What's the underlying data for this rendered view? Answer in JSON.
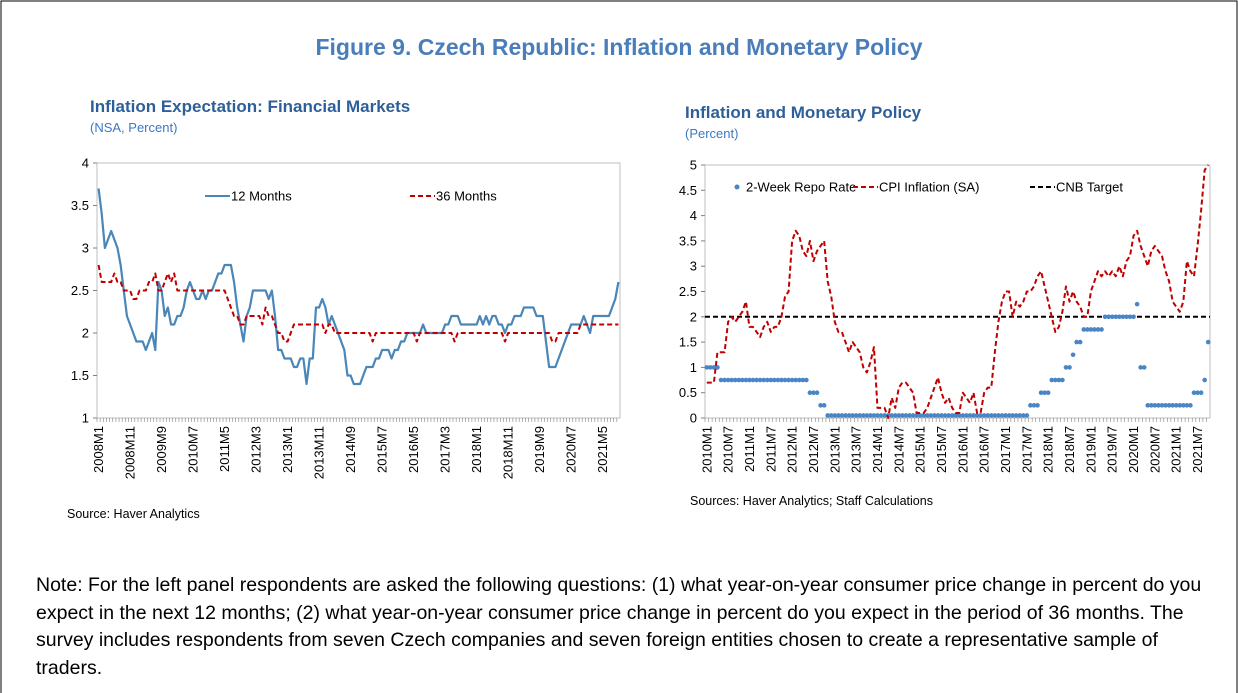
{
  "title": "Figure 9. Czech Republic: Inflation and Monetary Policy",
  "note": "Note: For the left panel respondents are asked the following questions: (1) what year-on-year consumer price change in percent do you expect in the next 12 months; (2) what year-on-year consumer price change in percent do you expect in the period of 36 months. The survey includes respondents from seven Czech companies and seven foreign entities chosen to create a representative sample of traders.",
  "chart_data": [
    {
      "type": "line",
      "title": "Inflation Expectation: Financial Markets",
      "subtitle": "(NSA, Percent)",
      "source": "Source: Haver Analytics",
      "categories": [
        "2008M1",
        null,
        null,
        null,
        null,
        null,
        null,
        null,
        null,
        null,
        "2008M11",
        null,
        null,
        null,
        null,
        null,
        null,
        null,
        null,
        null,
        "2009M9",
        null,
        null,
        null,
        null,
        null,
        null,
        null,
        null,
        null,
        "2010M7",
        null,
        null,
        null,
        null,
        null,
        null,
        null,
        null,
        null,
        "2011M5",
        null,
        null,
        null,
        null,
        null,
        null,
        null,
        null,
        null,
        "2012M3",
        null,
        null,
        null,
        null,
        null,
        null,
        null,
        null,
        null,
        "2013M1",
        null,
        null,
        null,
        null,
        null,
        null,
        null,
        null,
        null,
        "2013M11",
        null,
        null,
        null,
        null,
        null,
        null,
        null,
        null,
        null,
        "2014M9",
        null,
        null,
        null,
        null,
        null,
        null,
        null,
        null,
        null,
        "2015M7",
        null,
        null,
        null,
        null,
        null,
        null,
        null,
        null,
        null,
        "2016M5",
        null,
        null,
        null,
        null,
        null,
        null,
        null,
        null,
        null,
        "2017M3",
        null,
        null,
        null,
        null,
        null,
        null,
        null,
        null,
        null,
        "2018M1",
        null,
        null,
        null,
        null,
        null,
        null,
        null,
        null,
        null,
        "2018M11",
        null,
        null,
        null,
        null,
        null,
        null,
        null,
        null,
        null,
        "2019M9",
        null,
        null,
        null,
        null,
        null,
        null,
        null,
        null,
        null,
        "2020M7",
        null,
        null,
        null,
        null,
        null,
        null,
        null,
        null,
        null,
        "2021M5",
        null,
        null,
        null,
        null,
        null
      ],
      "series": [
        {
          "name": "12 Months",
          "color": "#4a86b8",
          "style": "solid",
          "values": [
            3.7,
            3.4,
            3.0,
            3.1,
            3.2,
            3.1,
            3.0,
            2.8,
            2.5,
            2.2,
            2.1,
            2.0,
            1.9,
            1.9,
            1.9,
            1.8,
            1.9,
            2.0,
            1.8,
            2.6,
            2.5,
            2.2,
            2.3,
            2.1,
            2.1,
            2.2,
            2.2,
            2.3,
            2.5,
            2.6,
            2.5,
            2.4,
            2.4,
            2.5,
            2.4,
            2.5,
            2.5,
            2.6,
            2.7,
            2.7,
            2.8,
            2.8,
            2.8,
            2.6,
            2.3,
            2.1,
            1.9,
            2.2,
            2.3,
            2.5,
            2.5,
            2.5,
            2.5,
            2.5,
            2.4,
            2.5,
            2.2,
            1.8,
            1.8,
            1.7,
            1.7,
            1.7,
            1.6,
            1.6,
            1.7,
            1.7,
            1.4,
            1.7,
            1.7,
            2.3,
            2.3,
            2.4,
            2.3,
            2.1,
            2.2,
            2.1,
            2.0,
            1.9,
            1.8,
            1.5,
            1.5,
            1.4,
            1.4,
            1.4,
            1.5,
            1.6,
            1.6,
            1.6,
            1.7,
            1.7,
            1.8,
            1.8,
            1.8,
            1.7,
            1.8,
            1.8,
            1.9,
            1.9,
            2.0,
            2.0,
            2.0,
            2.0,
            2.0,
            2.1,
            2.0,
            2.0,
            2.0,
            2.0,
            2.0,
            2.0,
            2.1,
            2.1,
            2.2,
            2.2,
            2.2,
            2.1,
            2.1,
            2.1,
            2.1,
            2.1,
            2.1,
            2.2,
            2.1,
            2.2,
            2.1,
            2.2,
            2.2,
            2.1,
            2.1,
            2.0,
            2.1,
            2.1,
            2.2,
            2.2,
            2.2,
            2.3,
            2.3,
            2.3,
            2.3,
            2.2,
            2.2,
            2.2,
            1.9,
            1.6,
            1.6,
            1.6,
            1.7,
            1.8,
            1.9,
            2.0,
            2.1,
            2.1,
            2.1,
            2.1,
            2.2,
            2.1,
            2.0,
            2.2,
            2.2,
            2.2,
            2.2,
            2.2,
            2.2,
            2.3,
            2.4,
            2.6
          ]
        },
        {
          "name": "36 Months",
          "color": "#c00000",
          "style": "dashed",
          "values": [
            2.8,
            2.6,
            2.6,
            2.6,
            2.6,
            2.7,
            2.6,
            2.6,
            2.5,
            2.5,
            2.5,
            2.4,
            2.4,
            2.5,
            2.5,
            2.5,
            2.6,
            2.6,
            2.7,
            2.5,
            2.5,
            2.6,
            2.7,
            2.6,
            2.7,
            2.5,
            2.5,
            2.5,
            2.5,
            2.5,
            2.5,
            2.5,
            2.5,
            2.5,
            2.5,
            2.5,
            2.5,
            2.5,
            2.5,
            2.5,
            2.5,
            2.4,
            2.3,
            2.2,
            2.2,
            2.1,
            2.1,
            2.2,
            2.2,
            2.2,
            2.2,
            2.2,
            2.1,
            2.3,
            2.2,
            2.2,
            2.1,
            2.0,
            2.0,
            1.9,
            1.9,
            2.0,
            2.1,
            2.1,
            2.1,
            2.1,
            2.1,
            2.1,
            2.1,
            2.1,
            2.1,
            2.1,
            2.0,
            2.1,
            2.1,
            2.0,
            2.0,
            2.0,
            2.0,
            2.0,
            2.0,
            2.0,
            2.0,
            2.0,
            2.0,
            2.0,
            2.0,
            1.9,
            2.0,
            2.0,
            2.0,
            2.0,
            2.0,
            2.0,
            2.0,
            2.0,
            2.0,
            2.0,
            2.0,
            2.0,
            2.0,
            1.9,
            2.0,
            2.0,
            2.0,
            2.0,
            2.0,
            2.0,
            2.0,
            2.0,
            2.0,
            2.0,
            2.0,
            1.9,
            2.0,
            2.0,
            2.0,
            2.0,
            2.0,
            2.0,
            2.0,
            2.0,
            2.0,
            2.0,
            2.0,
            2.0,
            2.0,
            2.0,
            2.0,
            1.9,
            2.0,
            2.0,
            2.0,
            2.0,
            2.0,
            2.0,
            2.0,
            2.0,
            2.0,
            2.0,
            2.0,
            2.0,
            2.0,
            2.0,
            1.9,
            1.9,
            2.0,
            2.0,
            2.0,
            2.0,
            2.0,
            2.0,
            2.0,
            2.1,
            2.1,
            2.1,
            2.1,
            2.1,
            2.1,
            2.1,
            2.1,
            2.1,
            2.1,
            2.1,
            2.1,
            2.1
          ]
        }
      ],
      "ylim": [
        1,
        4
      ],
      "yticks": [
        1,
        1.5,
        2,
        2.5,
        3,
        3.5,
        4
      ]
    },
    {
      "type": "line",
      "title": "Inflation and Monetary Policy",
      "subtitle": "(Percent)",
      "source": "Sources: Haver Analytics; Staff Calculations",
      "categories": [
        "2010M1",
        null,
        null,
        null,
        null,
        null,
        "2010M7",
        null,
        null,
        null,
        null,
        null,
        "2011M1",
        null,
        null,
        null,
        null,
        null,
        "2011M7",
        null,
        null,
        null,
        null,
        null,
        "2012M1",
        null,
        null,
        null,
        null,
        null,
        "2012M7",
        null,
        null,
        null,
        null,
        null,
        "2013M1",
        null,
        null,
        null,
        null,
        null,
        "2013M7",
        null,
        null,
        null,
        null,
        null,
        "2014M1",
        null,
        null,
        null,
        null,
        null,
        "2014M7",
        null,
        null,
        null,
        null,
        null,
        "2015M1",
        null,
        null,
        null,
        null,
        null,
        "2015M7",
        null,
        null,
        null,
        null,
        null,
        "2016M1",
        null,
        null,
        null,
        null,
        null,
        "2016M7",
        null,
        null,
        null,
        null,
        null,
        "2017M1",
        null,
        null,
        null,
        null,
        null,
        "2017M7",
        null,
        null,
        null,
        null,
        null,
        "2018M1",
        null,
        null,
        null,
        null,
        null,
        "2018M7",
        null,
        null,
        null,
        null,
        null,
        "2019M1",
        null,
        null,
        null,
        null,
        null,
        "2019M7",
        null,
        null,
        null,
        null,
        null,
        "2020M1",
        null,
        null,
        null,
        null,
        null,
        "2020M7",
        null,
        null,
        null,
        null,
        null,
        "2021M1",
        null,
        null,
        null,
        null,
        null,
        "2021M7",
        null,
        null,
        null
      ],
      "series": [
        {
          "name": "2-Week Repo Rate",
          "color": "#4a86c5",
          "style": "dots",
          "values": [
            1,
            1,
            1,
            1,
            0.75,
            0.75,
            0.75,
            0.75,
            0.75,
            0.75,
            0.75,
            0.75,
            0.75,
            0.75,
            0.75,
            0.75,
            0.75,
            0.75,
            0.75,
            0.75,
            0.75,
            0.75,
            0.75,
            0.75,
            0.75,
            0.75,
            0.75,
            0.75,
            0.75,
            0.5,
            0.5,
            0.5,
            0.25,
            0.25,
            0.05,
            0.05,
            0.05,
            0.05,
            0.05,
            0.05,
            0.05,
            0.05,
            0.05,
            0.05,
            0.05,
            0.05,
            0.05,
            0.05,
            0.05,
            0.05,
            0.05,
            0.05,
            0.05,
            0.05,
            0.05,
            0.05,
            0.05,
            0.05,
            0.05,
            0.05,
            0.05,
            0.05,
            0.05,
            0.05,
            0.05,
            0.05,
            0.05,
            0.05,
            0.05,
            0.05,
            0.05,
            0.05,
            0.05,
            0.05,
            0.05,
            0.05,
            0.05,
            0.05,
            0.05,
            0.05,
            0.05,
            0.05,
            0.05,
            0.05,
            0.05,
            0.05,
            0.05,
            0.05,
            0.05,
            0.05,
            0.05,
            0.25,
            0.25,
            0.25,
            0.5,
            0.5,
            0.5,
            0.75,
            0.75,
            0.75,
            0.75,
            1,
            1,
            1.25,
            1.5,
            1.5,
            1.75,
            1.75,
            1.75,
            1.75,
            1.75,
            1.75,
            2,
            2,
            2,
            2,
            2,
            2,
            2,
            2,
            2,
            2.25,
            1,
            1,
            0.25,
            0.25,
            0.25,
            0.25,
            0.25,
            0.25,
            0.25,
            0.25,
            0.25,
            0.25,
            0.25,
            0.25,
            0.25,
            0.5,
            0.5,
            0.5,
            0.75,
            1.5
          ]
        },
        {
          "name": "CPI Inflation (SA)",
          "color": "#c00000",
          "style": "dashed",
          "values": [
            0.7,
            0.7,
            0.7,
            1.3,
            1.3,
            1.3,
            1.9,
            2.0,
            1.9,
            2.0,
            2.1,
            2.3,
            1.8,
            1.8,
            1.7,
            1.6,
            1.8,
            1.9,
            1.7,
            1.8,
            1.8,
            2.0,
            2.4,
            2.5,
            3.5,
            3.7,
            3.6,
            3.3,
            3.2,
            3.5,
            3.1,
            3.3,
            3.4,
            3.5,
            2.7,
            2.4,
            1.9,
            1.7,
            1.7,
            1.5,
            1.3,
            1.5,
            1.4,
            1.3,
            1.0,
            0.9,
            1.1,
            1.4,
            0.2,
            0.2,
            0.2,
            0.0,
            0.4,
            0.2,
            0.6,
            0.7,
            0.7,
            0.6,
            0.5,
            0.1,
            0.1,
            0.1,
            0.2,
            0.4,
            0.6,
            0.8,
            0.5,
            0.3,
            0.4,
            0.2,
            0.1,
            0.1,
            0.5,
            0.4,
            0.3,
            0.5,
            0.1,
            0.1,
            0.5,
            0.6,
            0.6,
            1.3,
            1.9,
            2.3,
            2.5,
            2.5,
            2.0,
            2.3,
            2.2,
            2.3,
            2.5,
            2.5,
            2.6,
            2.8,
            2.9,
            2.6,
            2.3,
            2.0,
            1.7,
            1.8,
            2.1,
            2.6,
            2.3,
            2.5,
            2.3,
            2.2,
            2.0,
            2.0,
            2.5,
            2.7,
            2.9,
            2.8,
            2.9,
            2.8,
            2.9,
            2.8,
            3.0,
            2.8,
            3.1,
            3.2,
            3.6,
            3.7,
            3.4,
            3.2,
            3.0,
            3.3,
            3.4,
            3.3,
            3.2,
            2.9,
            2.7,
            2.3,
            2.2,
            2.1,
            2.3,
            3.1,
            2.9,
            2.8,
            3.4,
            4.1,
            4.9,
            5.0
          ]
        }
      ],
      "reference_lines": [
        {
          "name": "CNB Target",
          "value": 2,
          "color": "#000000",
          "style": "dashed"
        }
      ],
      "ylim": [
        0,
        5
      ],
      "yticks": [
        0,
        0.5,
        1,
        1.5,
        2,
        2.5,
        3,
        3.5,
        4,
        4.5,
        5
      ]
    }
  ]
}
